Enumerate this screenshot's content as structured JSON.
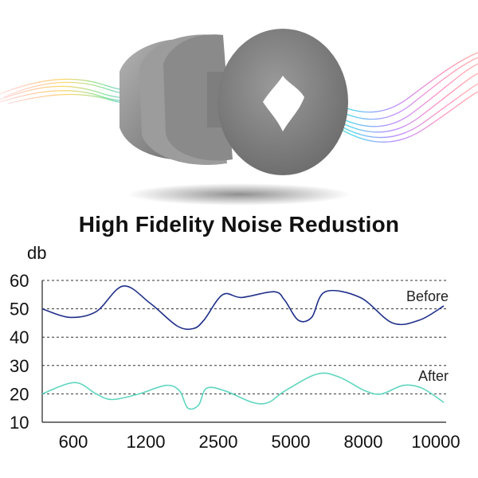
{
  "title": "High Fidelity Noise Redustion",
  "colors": {
    "before": "#1f2f8a",
    "after": "#5fd6c0",
    "earplug": "#8f8f8f"
  },
  "chart_data": {
    "type": "line",
    "title": "High Fidelity Noise Redustion",
    "ylabel": "db",
    "xlabel": "",
    "ylim": [
      10,
      60
    ],
    "yticks": [
      10,
      20,
      30,
      40,
      50,
      60
    ],
    "xtick_labels": [
      "600",
      "1200",
      "2500",
      "5000",
      "8000",
      "10000"
    ],
    "grid": "dashed horizontal at 20, 30, 40, 50, 60",
    "legend": "inline labels at right",
    "series": [
      {
        "name": "Before",
        "points": [
          {
            "x": 0.0,
            "y": 50
          },
          {
            "x": 0.5,
            "y": 47
          },
          {
            "x": 1.0,
            "y": 49
          },
          {
            "x": 1.5,
            "y": 58
          },
          {
            "x": 2.0,
            "y": 52
          },
          {
            "x": 2.5,
            "y": 44
          },
          {
            "x": 2.8,
            "y": 43
          },
          {
            "x": 3.0,
            "y": 46
          },
          {
            "x": 3.35,
            "y": 55
          },
          {
            "x": 3.7,
            "y": 54
          },
          {
            "x": 4.3,
            "y": 56
          },
          {
            "x": 4.5,
            "y": 53
          },
          {
            "x": 4.75,
            "y": 46
          },
          {
            "x": 5.0,
            "y": 47
          },
          {
            "x": 5.25,
            "y": 56
          },
          {
            "x": 5.9,
            "y": 54
          },
          {
            "x": 6.5,
            "y": 45
          },
          {
            "x": 7.0,
            "y": 46
          },
          {
            "x": 7.45,
            "y": 51
          }
        ]
      },
      {
        "name": "After",
        "points": [
          {
            "x": 0.0,
            "y": 20
          },
          {
            "x": 0.6,
            "y": 24
          },
          {
            "x": 1.0,
            "y": 20
          },
          {
            "x": 1.3,
            "y": 18
          },
          {
            "x": 1.8,
            "y": 20
          },
          {
            "x": 2.3,
            "y": 23
          },
          {
            "x": 2.55,
            "y": 21
          },
          {
            "x": 2.7,
            "y": 15
          },
          {
            "x": 2.9,
            "y": 16
          },
          {
            "x": 3.05,
            "y": 22
          },
          {
            "x": 3.4,
            "y": 21
          },
          {
            "x": 3.9,
            "y": 17
          },
          {
            "x": 4.2,
            "y": 17
          },
          {
            "x": 4.5,
            "y": 21
          },
          {
            "x": 5.1,
            "y": 27
          },
          {
            "x": 5.5,
            "y": 26
          },
          {
            "x": 6.0,
            "y": 21
          },
          {
            "x": 6.3,
            "y": 20
          },
          {
            "x": 6.7,
            "y": 23
          },
          {
            "x": 7.05,
            "y": 22
          },
          {
            "x": 7.45,
            "y": 17
          }
        ]
      }
    ]
  }
}
